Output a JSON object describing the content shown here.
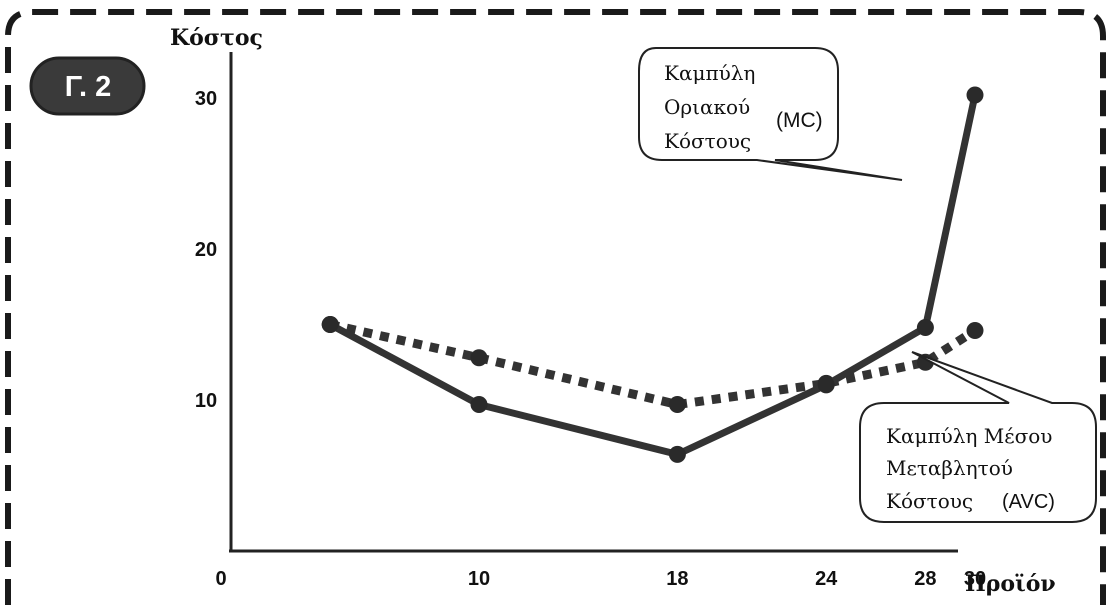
{
  "badge": "Γ. 2",
  "chart_data": {
    "type": "line",
    "ylabel": "Κόστος",
    "xlabel": "Προϊόν",
    "origin_label": "0",
    "x_ticks": [
      {
        "value": 10,
        "label": "10"
      },
      {
        "value": 18,
        "label": "18"
      },
      {
        "value": 24,
        "label": "24"
      },
      {
        "value": 28,
        "label": "28"
      },
      {
        "value": 30,
        "label": "30"
      }
    ],
    "y_ticks": [
      {
        "value": 10,
        "label": "10"
      },
      {
        "value": 20,
        "label": "20"
      },
      {
        "value": 30,
        "label": "30"
      }
    ],
    "series": [
      {
        "callout": [
          "Καμπύλη",
          "Οριακού",
          "Κόστους"
        ],
        "callout_tag": "(MC)",
        "style": "solid",
        "color": "#333333",
        "points": [
          [
            4,
            15
          ],
          [
            10,
            9.7
          ],
          [
            18,
            6.4
          ],
          [
            24,
            11
          ],
          [
            28,
            14.8
          ],
          [
            30,
            30.2
          ]
        ],
        "markers": [
          [
            4,
            15
          ],
          [
            10,
            9.7
          ],
          [
            18,
            6.4
          ],
          [
            24,
            11
          ],
          [
            28,
            14.8
          ],
          [
            30,
            30.2
          ]
        ]
      },
      {
        "callout": [
          "Καμπύλη Μέσου",
          "Μεταβλητού",
          "Κόστους"
        ],
        "callout_tag": "(AVC)",
        "style": "dotted",
        "color": "#333333",
        "points": [
          [
            4,
            15
          ],
          [
            10,
            12.8
          ],
          [
            18,
            9.7
          ],
          [
            24,
            11.1
          ],
          [
            28,
            12.5
          ],
          [
            30,
            14.6
          ]
        ],
        "markers": [
          [
            4,
            15
          ],
          [
            10,
            12.8
          ],
          [
            18,
            9.7
          ],
          [
            24,
            11.1
          ],
          [
            28,
            12.5
          ],
          [
            30,
            14.6
          ]
        ]
      }
    ]
  }
}
